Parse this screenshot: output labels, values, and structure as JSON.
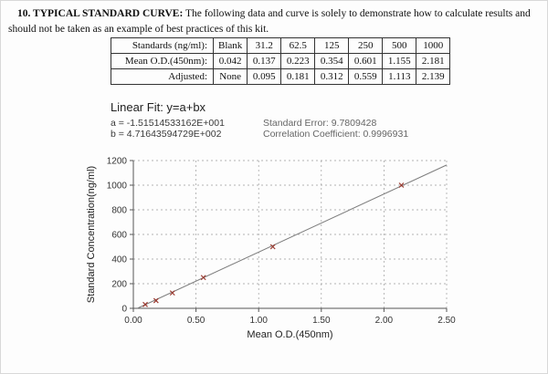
{
  "page": {
    "heading_bold": "10. TYPICAL STANDARD CURVE:",
    "heading_rest": " The following data and curve is solely to demonstrate how to calculate results and should not be taken as an example of best practices of this kit."
  },
  "table": {
    "rows": [
      {
        "label": "Standards (ng/ml):",
        "cells": [
          "Blank",
          "31.2",
          "62.5",
          "125",
          "250",
          "500",
          "1000"
        ]
      },
      {
        "label": "Mean O.D.(450nm):",
        "cells": [
          "0.042",
          "0.137",
          "0.223",
          "0.354",
          "0.601",
          "1.155",
          "2.181"
        ]
      },
      {
        "label": "Adjusted:",
        "cells": [
          "None",
          "0.095",
          "0.181",
          "0.312",
          "0.559",
          "1.113",
          "2.139"
        ]
      }
    ]
  },
  "fit": {
    "title": "Linear Fit: y=a+bx",
    "a_line": "a = -1.51514533162E+001",
    "b_line": "b = 4.71643594729E+002",
    "std_error": "Standard Error: 9.7809428",
    "corr": "Correlation Coefficient: 0.9996931"
  },
  "chart_data": {
    "type": "scatter",
    "title": "",
    "xlabel": "Mean O.D.(450nm)",
    "ylabel": "Standard Concentration(ng/ml)",
    "x": [
      0.095,
      0.181,
      0.312,
      0.559,
      1.113,
      2.139
    ],
    "y": [
      31.2,
      62.5,
      125,
      250,
      500,
      1000
    ],
    "fit": {
      "a": -15.1514533162,
      "b": 471.643594729
    },
    "xlim": [
      0,
      2.5
    ],
    "ylim": [
      0,
      1200
    ],
    "xticks": [
      "0.00",
      "0.50",
      "1.00",
      "1.50",
      "2.00",
      "2.50"
    ],
    "yticks": [
      0,
      200,
      400,
      600,
      800,
      1000,
      1200
    ],
    "grid": "dashed",
    "legend": "none"
  }
}
